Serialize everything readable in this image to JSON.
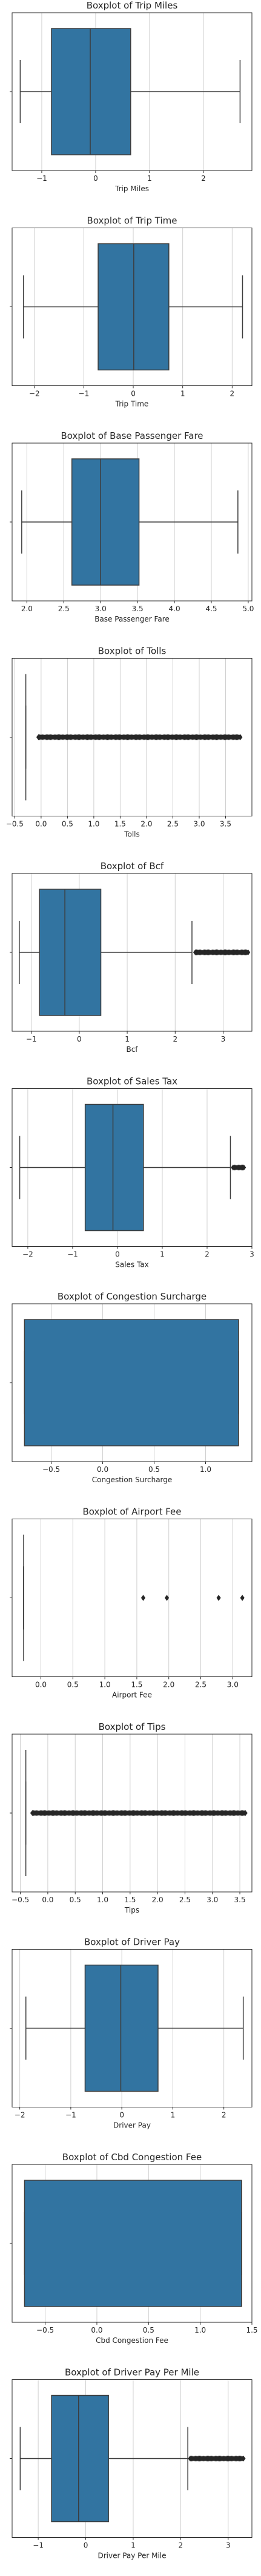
{
  "colors": {
    "box": "#3274a1",
    "frame": "#262626",
    "grid": "#cfcfcf",
    "whisker": "#3d3d3d",
    "median": "#3d3d3d",
    "outlier": "#262626"
  },
  "chart_data": [
    {
      "type": "boxplot",
      "title": "Boxplot of Trip Miles",
      "xlabel": "Trip Miles",
      "xlim": [
        -1.55,
        2.9
      ],
      "xticks": [
        -1,
        0,
        1,
        2
      ],
      "xtick_labels": [
        "−1",
        "0",
        "1",
        "2"
      ],
      "whisker_low": -1.4,
      "q1": -0.82,
      "median": -0.1,
      "q3": 0.65,
      "whisker_high": 2.68,
      "outliers": []
    },
    {
      "type": "boxplot",
      "title": "Boxplot of Trip Time",
      "xlabel": "Trip Time",
      "xlim": [
        -2.45,
        2.4
      ],
      "xticks": [
        -2,
        -1,
        0,
        1,
        2
      ],
      "xtick_labels": [
        "−2",
        "−1",
        "0",
        "1",
        "2"
      ],
      "whisker_low": -2.22,
      "q1": -0.71,
      "median": 0.01,
      "q3": 0.72,
      "whisker_high": 2.21,
      "outliers": []
    },
    {
      "type": "boxplot",
      "title": "Boxplot of Base Passenger Fare",
      "xlabel": "Base Passenger Fare",
      "xlim": [
        1.8,
        5.05
      ],
      "xticks": [
        2.0,
        2.5,
        3.0,
        3.5,
        4.0,
        4.5,
        5.0
      ],
      "xtick_labels": [
        "2.0",
        "2.5",
        "3.0",
        "3.5",
        "4.0",
        "4.5",
        "5.0"
      ],
      "whisker_low": 1.93,
      "q1": 2.61,
      "median": 3.0,
      "q3": 3.52,
      "whisker_high": 4.86,
      "outliers": []
    },
    {
      "type": "boxplot",
      "title": "Boxplot of Tolls",
      "xlabel": "Tolls",
      "xlim": [
        -0.55,
        4.0
      ],
      "xticks": [
        -0.5,
        0.0,
        0.5,
        1.0,
        1.5,
        2.0,
        2.5,
        3.0,
        3.5
      ],
      "xtick_labels": [
        "−0.5",
        "0.0",
        "0.5",
        "1.0",
        "1.5",
        "2.0",
        "2.5",
        "3.0",
        "3.5"
      ],
      "whisker_low": -0.29,
      "q1": -0.29,
      "median": -0.29,
      "q3": -0.29,
      "whisker_high": -0.29,
      "outlier_range": [
        -0.05,
        3.78
      ]
    },
    {
      "type": "boxplot",
      "title": "Boxplot of Bcf",
      "xlabel": "Bcf",
      "xlim": [
        -1.4,
        3.6
      ],
      "xticks": [
        -1,
        0,
        1,
        2,
        3
      ],
      "xtick_labels": [
        "−1",
        "0",
        "1",
        "2",
        "3"
      ],
      "whisker_low": -1.25,
      "q1": -0.83,
      "median": -0.3,
      "q3": 0.45,
      "whisker_high": 2.35,
      "outlier_range": [
        2.42,
        3.52
      ]
    },
    {
      "type": "boxplot",
      "title": "Boxplot of Sales Tax",
      "xlabel": "Sales Tax",
      "xlim": [
        -2.35,
        3.0
      ],
      "xticks": [
        -2,
        -1,
        0,
        1,
        2,
        3
      ],
      "xtick_labels": [
        "−2",
        "−1",
        "0",
        "1",
        "2",
        "3"
      ],
      "whisker_low": -2.18,
      "q1": -0.72,
      "median": -0.1,
      "q3": 0.58,
      "whisker_high": 2.52,
      "outlier_range": [
        2.58,
        2.82
      ]
    },
    {
      "type": "boxplot",
      "title": "Boxplot of Congestion Surcharge",
      "xlabel": "Congestion Surcharge",
      "xlim": [
        -0.88,
        1.45
      ],
      "xticks": [
        -0.5,
        0.0,
        0.5,
        1.0
      ],
      "xtick_labels": [
        "−0.5",
        "0.0",
        "0.5",
        "1.0"
      ],
      "whisker_low": -0.76,
      "q1": -0.76,
      "median": 1.32,
      "q3": 1.32,
      "whisker_high": 1.32,
      "outliers": []
    },
    {
      "type": "boxplot",
      "title": "Boxplot of Airport Fee",
      "xlabel": "Airport Fee",
      "xlim": [
        -0.45,
        3.3
      ],
      "xticks": [
        0.0,
        0.5,
        1.0,
        1.5,
        2.0,
        2.5,
        3.0
      ],
      "xtick_labels": [
        "0.0",
        "0.5",
        "1.0",
        "1.5",
        "2.0",
        "2.5",
        "3.0"
      ],
      "whisker_low": -0.27,
      "q1": -0.27,
      "median": -0.27,
      "q3": -0.27,
      "whisker_high": -0.27,
      "outliers": [
        1.6,
        1.97,
        2.78,
        3.15
      ]
    },
    {
      "type": "boxplot",
      "title": "Boxplot of Tips",
      "xlabel": "Tips",
      "xlim": [
        -0.65,
        3.72
      ],
      "xticks": [
        -0.5,
        0.0,
        0.5,
        1.0,
        1.5,
        2.0,
        2.5,
        3.0,
        3.5
      ],
      "xtick_labels": [
        "−0.5",
        "0.0",
        "0.5",
        "1.0",
        "1.5",
        "2.0",
        "2.5",
        "3.0",
        "3.5"
      ],
      "whisker_low": -0.4,
      "q1": -0.4,
      "median": -0.4,
      "q3": -0.4,
      "whisker_high": -0.4,
      "outlier_range": [
        -0.28,
        3.6
      ]
    },
    {
      "type": "boxplot",
      "title": "Boxplot of Driver Pay",
      "xlabel": "Driver Pay",
      "xlim": [
        -2.15,
        2.55
      ],
      "xticks": [
        -2,
        -1,
        0,
        1,
        2
      ],
      "xtick_labels": [
        "−2",
        "−1",
        "0",
        "1",
        "2"
      ],
      "whisker_low": -1.88,
      "q1": -0.72,
      "median": -0.02,
      "q3": 0.71,
      "whisker_high": 2.38,
      "outliers": []
    },
    {
      "type": "boxplot",
      "title": "Boxplot of Cbd Congestion Fee",
      "xlabel": "Cbd Congestion Fee",
      "xlim": [
        -0.82,
        1.5
      ],
      "xticks": [
        -0.5,
        0.0,
        0.5,
        1.0,
        1.5
      ],
      "xtick_labels": [
        "−0.5",
        "0.0",
        "0.5",
        "1.0",
        "1.5"
      ],
      "whisker_low": -0.7,
      "q1": -0.7,
      "median": 1.4,
      "q3": 1.4,
      "whisker_high": 1.4,
      "outliers": []
    },
    {
      "type": "boxplot",
      "title": "Boxplot of Driver Pay Per Mile",
      "xlabel": "Driver Pay Per Mile",
      "xlim": [
        -1.55,
        3.5
      ],
      "xticks": [
        -1,
        0,
        1,
        2,
        3
      ],
      "xtick_labels": [
        "−1",
        "0",
        "1",
        "2",
        "3"
      ],
      "whisker_low": -1.38,
      "q1": -0.72,
      "median": -0.15,
      "q3": 0.48,
      "whisker_high": 2.15,
      "outlier_range": [
        2.2,
        3.32
      ]
    }
  ]
}
